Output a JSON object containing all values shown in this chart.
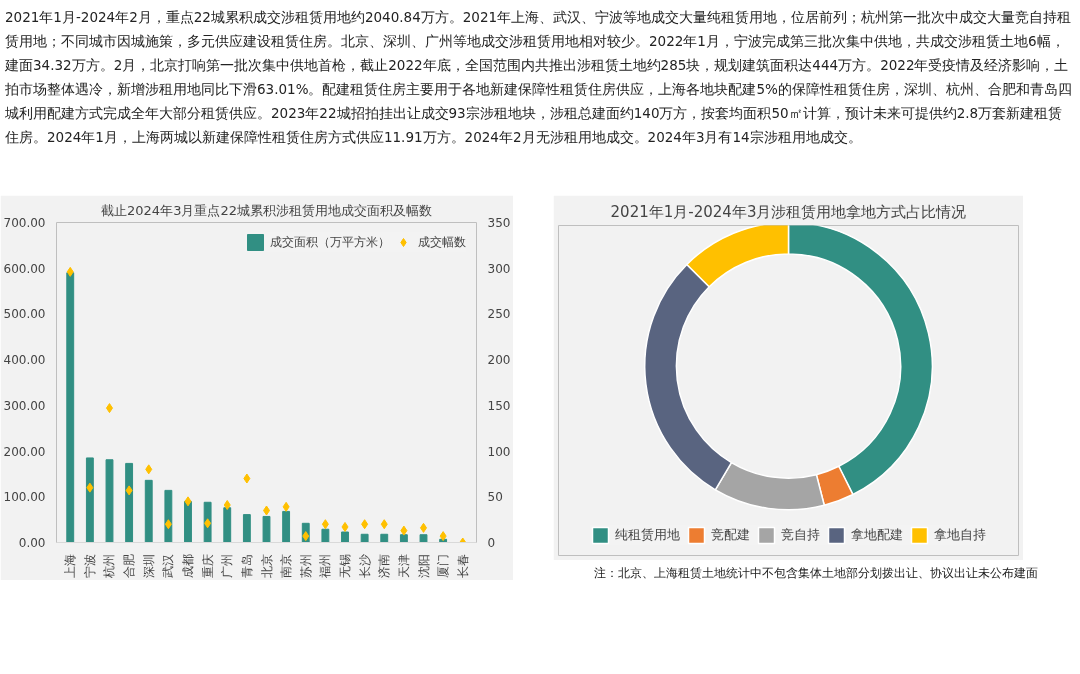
{
  "chart_data": [
    {
      "type": "other",
      "annotations": [
        "2021年1月-2024年2月，重点22城累积成交涉租赁用地约2040.84万方。2021年上海、武汉、宁波等地成交大量纯租赁用地，位居前列；杭州第一批次中成交大量竞自持租赁用地；不同城市因城施策，多元供应建设租赁住房。北京、深圳、广州等地成交涉租赁用地相对较少。2022年1月，宁波完成第三批次集中供地，共成交涉租赁土地6幅，建面34.32万方。2月，北京打响第一批次集中供地首枪，截止2022年底，全国范围内共推出涉租赁土地约285块，规划建筑面积达444万方。2022年受疫情及经济影响，土拍市场整体遇冷，新增涉租用地同比下滑63.01%。配建租赁住房主要用于各地新建保障性租赁住房供应，上海各地块配建5%的保障性租赁住房，深圳、杭州、合肥和青岛四城利用配建方式完成全年大部分租赁供应。2023年22城招拍挂出让成交93宗涉租地块，涉租总建面约140万方，按套均面积50㎡计算，预计未来可提供约2.8万套新建租赁住房。2024年1月，上海两城以新建保障性租赁住房方式供应11.91万方。2024年2月无涉租用地成交。2024年3月有14宗涉租用地成交。"
      ]
    },
    {
      "type": "bar",
      "title": "截止2024年3月重点22城累积涉租赁用地成交面积及幅数",
      "categories": [
        "上海",
        "宁波",
        "杭州",
        "合肥",
        "深圳",
        "武汉",
        "成都",
        "重庆",
        "广州",
        "青岛",
        "北京",
        "南京",
        "苏州",
        "福州",
        "无锡",
        "长沙",
        "济南",
        "天津",
        "沈阳",
        "厦门",
        "长春"
      ],
      "series": [
        {
          "name": "成交面积（万平方米）",
          "type": "bar",
          "color": "#318f83",
          "values": [
            590,
            185,
            181,
            173,
            136,
            114,
            90,
            88,
            76,
            61,
            57,
            68,
            42,
            29,
            23,
            18,
            18,
            17,
            17,
            7,
            null
          ]
        },
        {
          "name": "成交幅数",
          "type": "scatter",
          "axis": "y2",
          "color": "#ffc000",
          "values": [
            296,
            60,
            147,
            57,
            80,
            20,
            45,
            21,
            41,
            70,
            35,
            39,
            7,
            20,
            17,
            20,
            20,
            13,
            16,
            7,
            0
          ]
        }
      ],
      "ylim": [
        0,
        700
      ],
      "yticks": [
        {
          "value": 0,
          "label": "0.00"
        },
        {
          "value": 100,
          "label": "100.00"
        },
        {
          "value": 200,
          "label": "200.00"
        },
        {
          "value": 300,
          "label": "300.00"
        },
        {
          "value": 400,
          "label": "400.00"
        },
        {
          "value": 500,
          "label": "500.00"
        },
        {
          "value": 600,
          "label": "600.00"
        },
        {
          "value": 700,
          "label": "700.00"
        }
      ],
      "y2lim": [
        0,
        350
      ],
      "y2ticks": [
        0,
        50,
        100,
        150,
        200,
        250,
        300,
        350
      ],
      "marker": "diamond",
      "legend": "top right",
      "grid": false
    },
    {
      "type": "donut",
      "title": "2021年1月-2024年3月涉租赁用地拿地方式占比情况",
      "categories": [
        "纯租赁用地",
        "竞配建",
        "竞自持",
        "拿地配建",
        "拿地自持"
      ],
      "values": [
        42.6,
        3.4,
        12.5,
        29.0,
        12.5
      ],
      "colors": [
        "#318f83",
        "#ed7d31",
        "#a5a5a5",
        "#596480",
        "#ffc000"
      ],
      "legend": "bottom",
      "annotations": [
        "注：北京、上海租赁土地统计中不包含集体土地部分划拨出让、协议出让未公布建面"
      ]
    }
  ]
}
